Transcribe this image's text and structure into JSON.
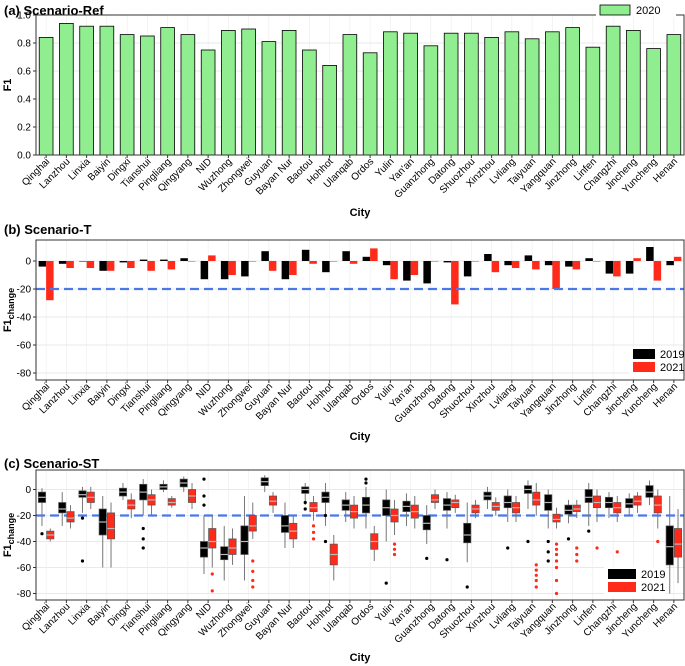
{
  "chart_data": [
    {
      "type": "bar",
      "title": "(a) Scenario-Ref",
      "xlabel": "City",
      "ylabel": "F1",
      "ylim": [
        0,
        1.0
      ],
      "yticks": [
        "0.0",
        "0.2",
        "0.4",
        "0.6",
        "0.8",
        "1.0"
      ],
      "grid": true,
      "legend_position": "top-right",
      "categories": [
        "Qinghai",
        "Lanzhou",
        "Linxia",
        "Baiyin",
        "Dingxi",
        "Tianshui",
        "Pingliang",
        "Qingyang",
        "NID",
        "Wuzhong",
        "Zhongwei",
        "Guyuan",
        "Bayan Nur",
        "Baotou",
        "Hohhot",
        "Ulanqab",
        "Ordos",
        "Yulin",
        "Yan'an",
        "Guanzhong",
        "Datong",
        "Shuozhou",
        "Xinzhou",
        "Lvliang",
        "Taiyuan",
        "Yangquan",
        "Jinzhong",
        "Linfen",
        "Changzhi",
        "Jincheng",
        "Yuncheng",
        "Henan"
      ],
      "series": [
        {
          "name": "2020",
          "color": "#90EE90",
          "values": [
            0.84,
            0.94,
            0.92,
            0.92,
            0.86,
            0.85,
            0.91,
            0.86,
            0.75,
            0.89,
            0.9,
            0.81,
            0.89,
            0.75,
            0.64,
            0.86,
            0.73,
            0.88,
            0.87,
            0.78,
            0.87,
            0.87,
            0.84,
            0.88,
            0.83,
            0.88,
            0.91,
            0.77,
            0.92,
            0.89,
            0.76,
            0.86
          ]
        }
      ]
    },
    {
      "type": "bar",
      "title": "(b) Scenario-T",
      "xlabel": "City",
      "ylabel": "F1",
      "ylabel_sub": "change",
      "ylim": [
        -85,
        15
      ],
      "yticks": [
        "0",
        "-20",
        "-40",
        "-60",
        "-80"
      ],
      "reference_line": -20,
      "grid": true,
      "legend_position": "bottom-right",
      "series": [
        {
          "name": "2019",
          "color": "#000000",
          "values": [
            -4,
            -2,
            0,
            -7,
            -1,
            1,
            1,
            2,
            -13,
            -13,
            -11,
            7,
            -13,
            8,
            -8,
            7,
            3,
            -3,
            -14,
            -16,
            -1,
            -11,
            5,
            -3,
            4,
            -3,
            -4,
            2,
            -9,
            -9,
            10,
            -3
          ]
        },
        {
          "name": "2021",
          "color": "#ff2a1a",
          "values": [
            -28,
            -5,
            -5,
            -7,
            -5,
            -7,
            -6,
            0,
            4,
            -10,
            0,
            -7,
            -10,
            -2,
            0,
            -2,
            9,
            -13,
            -10,
            0,
            -31,
            0,
            -8,
            -5,
            -6,
            -20,
            -6,
            0,
            -11,
            2,
            -14,
            3
          ]
        }
      ]
    },
    {
      "type": "box",
      "title": "(c) Scenario-ST",
      "xlabel": "City",
      "ylabel": "F1",
      "ylabel_sub": "change",
      "ylim": [
        -85,
        15
      ],
      "yticks": [
        "0",
        "-20",
        "-40",
        "-60",
        "-80"
      ],
      "reference_line": -20,
      "grid": true,
      "legend_position": "bottom-right",
      "series": [
        {
          "name": "2019",
          "color": "#000000",
          "boxes": [
            {
              "q1": -10,
              "med": -6,
              "q3": -2,
              "wlo": -28,
              "whi": 1,
              "out": [
                -34
              ]
            },
            {
              "q1": -18,
              "med": -15,
              "q3": -10,
              "wlo": -28,
              "whi": -2,
              "out": []
            },
            {
              "q1": -6,
              "med": -4,
              "q3": -1,
              "wlo": -18,
              "whi": 2,
              "out": [
                -22,
                -55
              ]
            },
            {
              "q1": -35,
              "med": -25,
              "q3": -15,
              "wlo": -60,
              "whi": -5,
              "out": []
            },
            {
              "q1": -5,
              "med": -2,
              "q3": 1,
              "wlo": -8,
              "whi": 5,
              "out": []
            },
            {
              "q1": -8,
              "med": -2,
              "q3": 4,
              "wlo": -20,
              "whi": 8,
              "out": [
                -30,
                -38,
                -45
              ]
            },
            {
              "q1": 0,
              "med": 2,
              "q3": 4,
              "wlo": -2,
              "whi": 7,
              "out": []
            },
            {
              "q1": 2,
              "med": 5,
              "q3": 8,
              "wlo": -2,
              "whi": 10,
              "out": []
            },
            {
              "q1": -52,
              "med": -45,
              "q3": -40,
              "wlo": -65,
              "whi": -20,
              "out": [
                8,
                -5,
                -12
              ]
            },
            {
              "q1": -54,
              "med": -50,
              "q3": -44,
              "wlo": -70,
              "whi": -28,
              "out": []
            },
            {
              "q1": -50,
              "med": -40,
              "q3": -28,
              "wlo": -70,
              "whi": -5,
              "out": []
            },
            {
              "q1": 3,
              "med": 6,
              "q3": 9,
              "wlo": -2,
              "whi": 11,
              "out": []
            },
            {
              "q1": -33,
              "med": -28,
              "q3": -20,
              "wlo": -45,
              "whi": -10,
              "out": []
            },
            {
              "q1": -3,
              "med": 0,
              "q3": 2,
              "wlo": -12,
              "whi": 5,
              "out": [
                -10,
                -15
              ]
            },
            {
              "q1": -10,
              "med": -6,
              "q3": -2,
              "wlo": -28,
              "whi": 5,
              "out": [
                -20,
                -40
              ]
            },
            {
              "q1": -16,
              "med": -12,
              "q3": -8,
              "wlo": -25,
              "whi": -2,
              "out": []
            },
            {
              "q1": -18,
              "med": -12,
              "q3": -6,
              "wlo": -30,
              "whi": 2,
              "out": [
                5,
                8
              ]
            },
            {
              "q1": -20,
              "med": -14,
              "q3": -8,
              "wlo": -40,
              "whi": 0,
              "out": [
                -72
              ]
            },
            {
              "q1": -17,
              "med": -13,
              "q3": -9,
              "wlo": -28,
              "whi": -3,
              "out": []
            },
            {
              "q1": -31,
              "med": -26,
              "q3": -20,
              "wlo": -42,
              "whi": -12,
              "out": [
                -53
              ]
            },
            {
              "q1": -16,
              "med": -12,
              "q3": -7,
              "wlo": -30,
              "whi": -2,
              "out": [
                -54
              ]
            },
            {
              "q1": -41,
              "med": -35,
              "q3": -26,
              "wlo": -56,
              "whi": -10,
              "out": [
                -75
              ]
            },
            {
              "q1": -8,
              "med": -5,
              "q3": -2,
              "wlo": -15,
              "whi": 2,
              "out": []
            },
            {
              "q1": -14,
              "med": -10,
              "q3": -5,
              "wlo": -25,
              "whi": 0,
              "out": [
                -45
              ]
            },
            {
              "q1": -3,
              "med": 0,
              "q3": 3,
              "wlo": -15,
              "whi": 7,
              "out": [
                -40
              ]
            },
            {
              "q1": -16,
              "med": -10,
              "q3": -4,
              "wlo": -30,
              "whi": 0,
              "out": [
                -40,
                -48,
                -55
              ]
            },
            {
              "q1": -19,
              "med": -16,
              "q3": -12,
              "wlo": -26,
              "whi": -8,
              "out": [
                -38
              ]
            },
            {
              "q1": -10,
              "med": -6,
              "q3": 0,
              "wlo": -28,
              "whi": 5,
              "out": [
                -32
              ]
            },
            {
              "q1": -14,
              "med": -10,
              "q3": -6,
              "wlo": -22,
              "whi": -2,
              "out": []
            },
            {
              "q1": -14,
              "med": -11,
              "q3": -7,
              "wlo": -20,
              "whi": -3,
              "out": []
            },
            {
              "q1": -6,
              "med": -2,
              "q3": 3,
              "wlo": -12,
              "whi": 7,
              "out": []
            },
            {
              "q1": -58,
              "med": -44,
              "q3": -28,
              "wlo": -80,
              "whi": -5,
              "out": []
            }
          ]
        },
        {
          "name": "2021",
          "color": "#ff2a1a",
          "boxes": [
            {
              "q1": -38,
              "med": -35,
              "q3": -32,
              "wlo": -40,
              "whi": -30,
              "out": []
            },
            {
              "q1": -25,
              "med": -22,
              "q3": -17,
              "wlo": -30,
              "whi": -12,
              "out": []
            },
            {
              "q1": -10,
              "med": -6,
              "q3": -2,
              "wlo": -15,
              "whi": 2,
              "out": []
            },
            {
              "q1": -38,
              "med": -30,
              "q3": -18,
              "wlo": -60,
              "whi": -10,
              "out": []
            },
            {
              "q1": -15,
              "med": -12,
              "q3": -8,
              "wlo": -22,
              "whi": -3,
              "out": []
            },
            {
              "q1": -12,
              "med": -8,
              "q3": -4,
              "wlo": -20,
              "whi": 0,
              "out": []
            },
            {
              "q1": -12,
              "med": -10,
              "q3": -7,
              "wlo": -14,
              "whi": -5,
              "out": []
            },
            {
              "q1": -10,
              "med": -5,
              "q3": 0,
              "wlo": -15,
              "whi": 5,
              "out": []
            },
            {
              "q1": -45,
              "med": -40,
              "q3": -30,
              "wlo": -60,
              "whi": -20,
              "out": [
                -65,
                -78
              ]
            },
            {
              "q1": -50,
              "med": -45,
              "q3": -38,
              "wlo": -58,
              "whi": -30,
              "out": []
            },
            {
              "q1": -32,
              "med": -28,
              "q3": -20,
              "wlo": -38,
              "whi": -10,
              "out": [
                -55,
                -63,
                -70,
                -75
              ]
            },
            {
              "q1": -12,
              "med": -9,
              "q3": -5,
              "wlo": -18,
              "whi": -2,
              "out": []
            },
            {
              "q1": -38,
              "med": -32,
              "q3": -26,
              "wlo": -45,
              "whi": -20,
              "out": []
            },
            {
              "q1": -17,
              "med": -14,
              "q3": -10,
              "wlo": -24,
              "whi": -5,
              "out": [
                -28,
                -33,
                -38
              ]
            },
            {
              "q1": -58,
              "med": -50,
              "q3": -42,
              "wlo": -70,
              "whi": -35,
              "out": []
            },
            {
              "q1": -22,
              "med": -17,
              "q3": -12,
              "wlo": -30,
              "whi": -5,
              "out": []
            },
            {
              "q1": -46,
              "med": -40,
              "q3": -34,
              "wlo": -55,
              "whi": -28,
              "out": []
            },
            {
              "q1": -25,
              "med": -20,
              "q3": -15,
              "wlo": -35,
              "whi": -8,
              "out": [
                -42,
                -46,
                -50
              ]
            },
            {
              "q1": -22,
              "med": -17,
              "q3": -12,
              "wlo": -30,
              "whi": -5,
              "out": []
            },
            {
              "q1": -10,
              "med": -8,
              "q3": -4,
              "wlo": -15,
              "whi": 0,
              "out": []
            },
            {
              "q1": -14,
              "med": -10,
              "q3": -8,
              "wlo": -18,
              "whi": -4,
              "out": []
            },
            {
              "q1": -18,
              "med": -15,
              "q3": -12,
              "wlo": -22,
              "whi": -8,
              "out": []
            },
            {
              "q1": -16,
              "med": -13,
              "q3": -10,
              "wlo": -20,
              "whi": -6,
              "out": []
            },
            {
              "q1": -18,
              "med": -14,
              "q3": -10,
              "wlo": -25,
              "whi": -5,
              "out": []
            },
            {
              "q1": -12,
              "med": -8,
              "q3": -2,
              "wlo": -20,
              "whi": 5,
              "out": [
                -58,
                -62,
                -66,
                -70,
                -75
              ]
            },
            {
              "q1": -25,
              "med": -23,
              "q3": -19,
              "wlo": -30,
              "whi": -14,
              "out": [
                -42,
                -46,
                -50,
                -55,
                -60,
                -70,
                -80
              ]
            },
            {
              "q1": -17,
              "med": -15,
              "q3": -12,
              "wlo": -22,
              "whi": -8,
              "out": [
                -45,
                -50,
                -55
              ]
            },
            {
              "q1": -14,
              "med": -10,
              "q3": -5,
              "wlo": -25,
              "whi": 0,
              "out": [
                -45
              ]
            },
            {
              "q1": -18,
              "med": -14,
              "q3": -10,
              "wlo": -25,
              "whi": -5,
              "out": [
                -48
              ]
            },
            {
              "q1": -12,
              "med": -9,
              "q3": -5,
              "wlo": -18,
              "whi": -2,
              "out": []
            },
            {
              "q1": -18,
              "med": -12,
              "q3": -5,
              "wlo": -30,
              "whi": 0,
              "out": [
                -40
              ]
            },
            {
              "q1": -52,
              "med": -42,
              "q3": -30,
              "wlo": -72,
              "whi": -15,
              "out": []
            }
          ]
        }
      ]
    }
  ]
}
